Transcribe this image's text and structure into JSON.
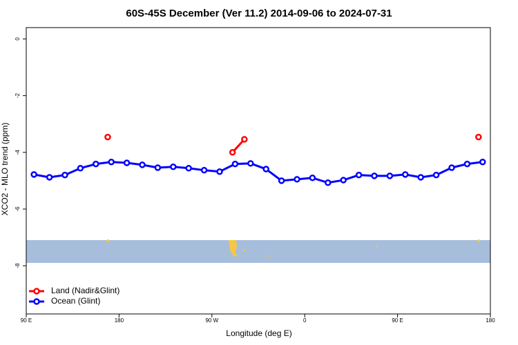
{
  "chart_data": {
    "type": "line",
    "title": "60S-45S December (Ver 11.2)   2014-09-06 to 2024-07-31",
    "xlabel": "Longitude (deg E)",
    "ylabel": "XCO2 - MLO trend (ppm)",
    "xlim": [
      90,
      540
    ],
    "ylim": [
      -9.7,
      0.4
    ],
    "xticks": [
      {
        "value": 90,
        "label": "90 E"
      },
      180,
      {
        "value": 270,
        "label": "90 W"
      },
      {
        "value": 360,
        "label": "0"
      },
      {
        "value": 450,
        "label": "90 E"
      },
      {
        "value": 540,
        "label": "180"
      }
    ],
    "yticks": [
      0,
      -2,
      -4,
      -6,
      -8
    ],
    "legend": "bottom-left",
    "series": [
      {
        "name": "Land (Nadir&Glint)",
        "color": "#ff0000",
        "x": [
          169,
          null,
          290,
          301.5,
          null,
          528.5
        ],
        "values": [
          -3.46,
          null,
          -4.0,
          -3.54,
          null,
          -3.46
        ]
      },
      {
        "name": "Ocean (Glint)",
        "color": "#0000ff",
        "x": [
          97.5,
          112.5,
          127.5,
          142.5,
          157.5,
          172.5,
          187.5,
          202.5,
          217.5,
          232.5,
          247.5,
          262.5,
          277.5,
          292.5,
          307.5,
          322.5,
          337.5,
          352.5,
          367.5,
          382.5,
          397.5,
          412.5,
          427.5,
          442.5,
          457.5,
          472.5,
          487.5,
          502.5,
          517.5,
          532.5
        ],
        "values": [
          -4.78,
          -4.88,
          -4.8,
          -4.56,
          -4.41,
          -4.34,
          -4.37,
          -4.44,
          -4.54,
          -4.51,
          -4.56,
          -4.63,
          -4.68,
          -4.41,
          -4.39,
          -4.59,
          -5.0,
          -4.95,
          -4.9,
          -5.07,
          -4.98,
          -4.8,
          -4.83,
          -4.83,
          -4.78,
          -4.88,
          -4.8,
          -4.54,
          -4.41,
          -4.34
        ]
      }
    ]
  }
}
